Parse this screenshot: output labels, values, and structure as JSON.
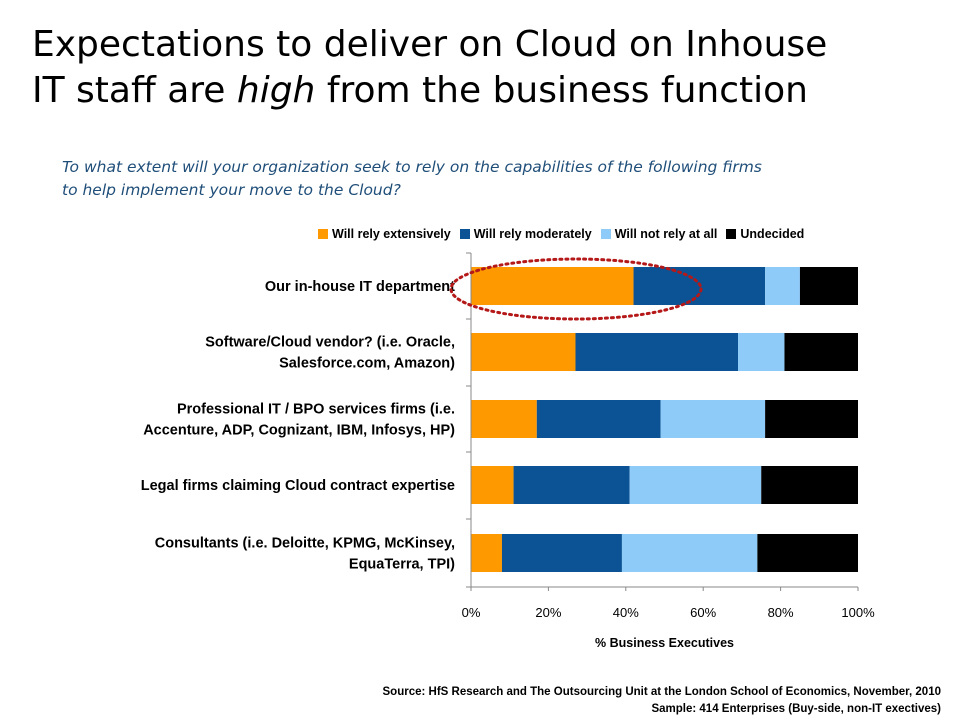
{
  "slide": {
    "title_line1": "Expectations to deliver on Cloud on Inhouse",
    "title_line2_a": "IT staff are ",
    "title_line2_em": "high",
    "title_line2_b": " from the business function",
    "subtitle_line1": "To what extent will your organization seek to rely on the capabilities of the following firms",
    "subtitle_line2": "to help implement your move to the Cloud?",
    "source_line1": "Source:  HfS Research and  The Outsourcing Unit at the London School of Economics, November, 2010",
    "source_line2": "Sample:  414 Enterprises (Buy-side, non-IT exectives)"
  },
  "chart_data": {
    "type": "bar",
    "orientation": "horizontal",
    "stacked": "percent",
    "categories": [
      [
        "Our in-house IT department"
      ],
      [
        "Software/Cloud vendor? (i.e. Oracle,",
        "Salesforce.com, Amazon)"
      ],
      [
        "Professional IT / BPO services firms (i.e.",
        "Accenture, ADP, Cognizant, IBM, Infosys, HP)"
      ],
      [
        "Legal firms claiming Cloud contract expertise"
      ],
      [
        "Consultants (i.e. Deloitte, KPMG, McKinsey,",
        "EquaTerra, TPI)"
      ]
    ],
    "series": [
      {
        "name": "Will rely extensively",
        "color": "#ff9900",
        "values": [
          42,
          27,
          17,
          11,
          8
        ]
      },
      {
        "name": "Will rely moderately",
        "color": "#0b5394",
        "values": [
          34,
          42,
          32,
          30,
          31
        ]
      },
      {
        "name": "Will not rely at all",
        "color": "#8ecbf8",
        "values": [
          9,
          12,
          27,
          34,
          35
        ]
      },
      {
        "name": "Undecided",
        "color": "#000000",
        "values": [
          15,
          19,
          24,
          25,
          26
        ]
      }
    ],
    "xlabel": "% Business Executives",
    "x_ticks": [
      "0%",
      "20%",
      "40%",
      "60%",
      "80%",
      "100%"
    ],
    "xlim": [
      0,
      100
    ],
    "legend_position": "top",
    "grid": false,
    "annotation": "dotted red ellipse highlighting the first bar"
  }
}
